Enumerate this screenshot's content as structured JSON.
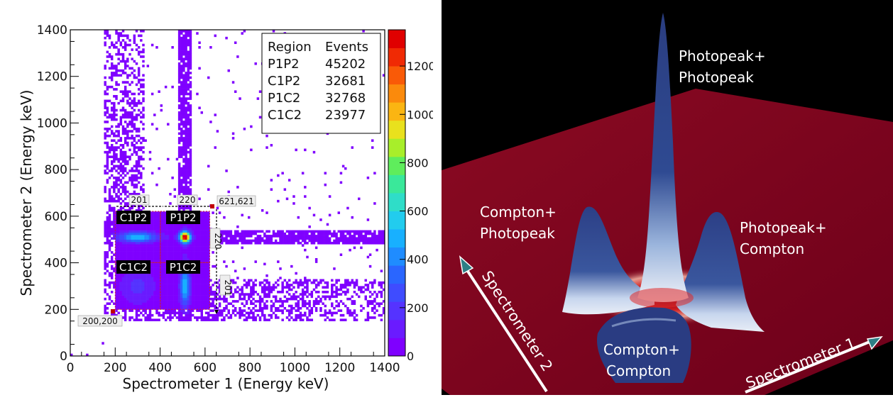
{
  "chart_data": [
    {
      "type": "heatmap",
      "xlabel": "Spectrometer 1 (Energy keV)",
      "ylabel": "Spectrometer 2 (Energy keV)",
      "xlim": [
        0,
        1400
      ],
      "ylim": [
        0,
        1400
      ],
      "x_ticks": [
        "0",
        "200",
        "400",
        "600",
        "800",
        "1000",
        "1200",
        "1400"
      ],
      "y_ticks": [
        "0",
        "200",
        "400",
        "600",
        "800",
        "1000",
        "1200",
        "1400"
      ],
      "colorbar": {
        "range": [
          0,
          1350
        ],
        "ticks": [
          "0",
          "200",
          "400",
          "600",
          "800",
          "1000",
          "1200"
        ],
        "colors": [
          "#7f00ff",
          "#6a1bff",
          "#5533ff",
          "#3f4cff",
          "#2a66ff",
          "#1f8cff",
          "#18b0ff",
          "#22ccee",
          "#2fddc8",
          "#3ae89a",
          "#5fed5c",
          "#a8ee2a",
          "#e9e11d",
          "#fbb512",
          "#fb8a0c",
          "#f95a07",
          "#f02a04",
          "#e00000"
        ]
      },
      "legend": {
        "header": [
          "Region",
          "Events"
        ],
        "rows": [
          {
            "region": "P1P2",
            "events": "45202"
          },
          {
            "region": "C1P2",
            "events": "32681"
          },
          {
            "region": "P1C2",
            "events": "32768"
          },
          {
            "region": "C1C2",
            "events": "23977"
          }
        ]
      },
      "regions": [
        {
          "label": "C1P2",
          "x": [
            200,
            401
          ],
          "y": [
            401,
            621
          ]
        },
        {
          "label": "P1P2",
          "x": [
            401,
            621
          ],
          "y": [
            401,
            621
          ]
        },
        {
          "label": "C1C2",
          "x": [
            200,
            401
          ],
          "y": [
            200,
            401
          ]
        },
        {
          "label": "P1C2",
          "x": [
            401,
            621
          ],
          "y": [
            200,
            401
          ]
        }
      ],
      "annotations": {
        "corner_low": "200,200",
        "corner_high": "621,621",
        "width_compton": "201",
        "width_photopeak": "220",
        "height_photopeak": "220",
        "height_compton": "201"
      },
      "peaks": [
        {
          "name": "photopeak+photopeak",
          "x": 511,
          "y": 511,
          "counts": 1300
        },
        {
          "name": "compton+photopeak",
          "x": 300,
          "y": 511,
          "counts": 500
        },
        {
          "name": "photopeak+compton",
          "x": 511,
          "y": 300,
          "counts": 500
        },
        {
          "name": "compton+compton",
          "x": 300,
          "y": 300,
          "counts": 180
        }
      ]
    },
    {
      "type": "surface",
      "axes": [
        "Spectrometer 1",
        "Spectrometer 2"
      ],
      "labels": [
        "Photopeak+\nPhotopeak",
        "Compton+\nPhotopeak",
        "Photopeak+\nCompton",
        "Compton+\nCompton"
      ]
    }
  ]
}
